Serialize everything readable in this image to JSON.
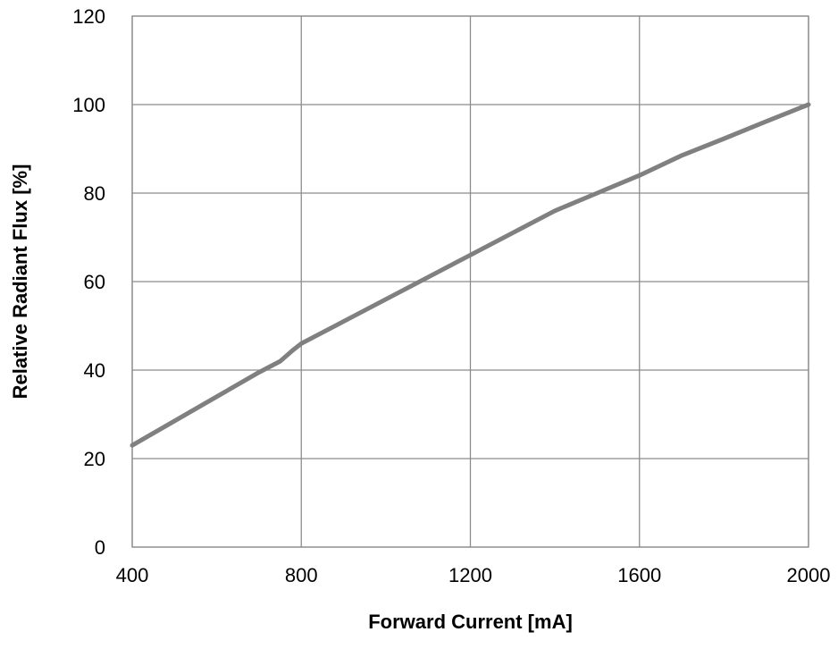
{
  "chart_data": {
    "type": "line",
    "title": "",
    "xlabel": "Forward Current [mA]",
    "ylabel": "Relative Radiant Flux [%]",
    "xlim": [
      400,
      2000
    ],
    "ylim": [
      0,
      120
    ],
    "xticks": [
      400,
      800,
      1200,
      1600,
      2000
    ],
    "yticks": [
      0,
      20,
      40,
      60,
      80,
      100,
      120
    ],
    "grid": true,
    "legend": "none",
    "series": [
      {
        "color": "#808080",
        "x": [
          400,
          500,
          600,
          700,
          750,
          780,
          800,
          900,
          1000,
          1100,
          1200,
          1300,
          1400,
          1500,
          1600,
          1700,
          1800,
          1900,
          2000
        ],
        "y": [
          23,
          28.5,
          34,
          39.5,
          42,
          44.5,
          46,
          51,
          56,
          61,
          66,
          71,
          76,
          80,
          84,
          88.5,
          92.3,
          96.2,
          100
        ]
      }
    ]
  }
}
